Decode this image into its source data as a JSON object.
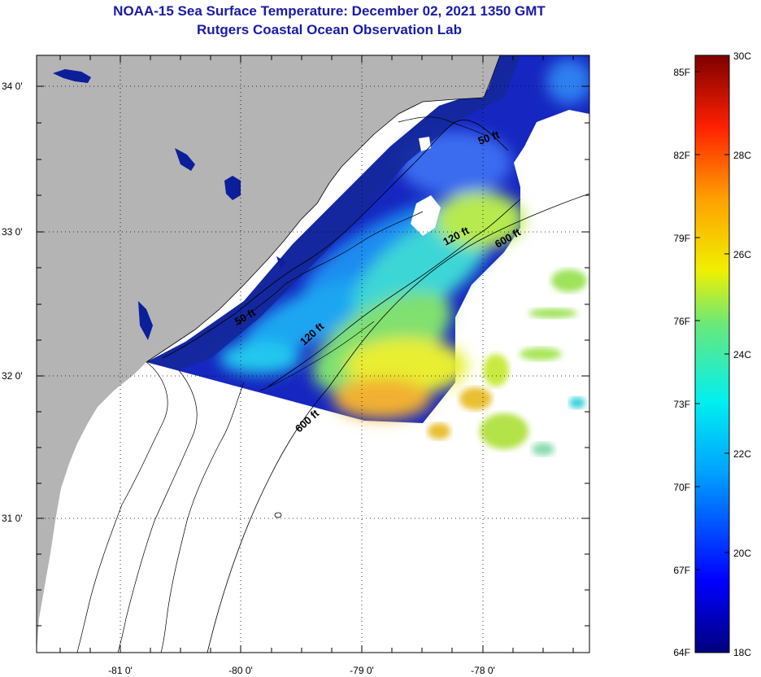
{
  "title": {
    "line1": "NOAA-15 Sea Surface Temperature:  December 02, 2021 1350 GMT",
    "line2": "Rutgers Coastal Ocean Observation Lab"
  },
  "map": {
    "lon_ticks": [
      "-81 0'",
      "-80 0'",
      "-79 0'",
      "-78 0'"
    ],
    "lat_ticks": [
      "34 0'",
      "33 0'",
      "32 0'",
      "31 0'"
    ],
    "contour_labels": [
      "50 ft",
      "120 ft",
      "600 ft",
      "50 ft",
      "120 ft",
      "600 ft"
    ]
  },
  "colorbar": {
    "fahrenheit_labels": [
      "85F",
      "82F",
      "79F",
      "76F",
      "73F",
      "70F",
      "67F",
      "64F"
    ],
    "celsius_labels": [
      "30C",
      "28C",
      "26C",
      "24C",
      "22C",
      "20C",
      "18C"
    ],
    "colors": [
      "#00007f",
      "#0000ff",
      "#00a0ff",
      "#00f0f0",
      "#6ae87a",
      "#f0f000",
      "#ffa000",
      "#ff2000",
      "#7f0000"
    ]
  }
}
